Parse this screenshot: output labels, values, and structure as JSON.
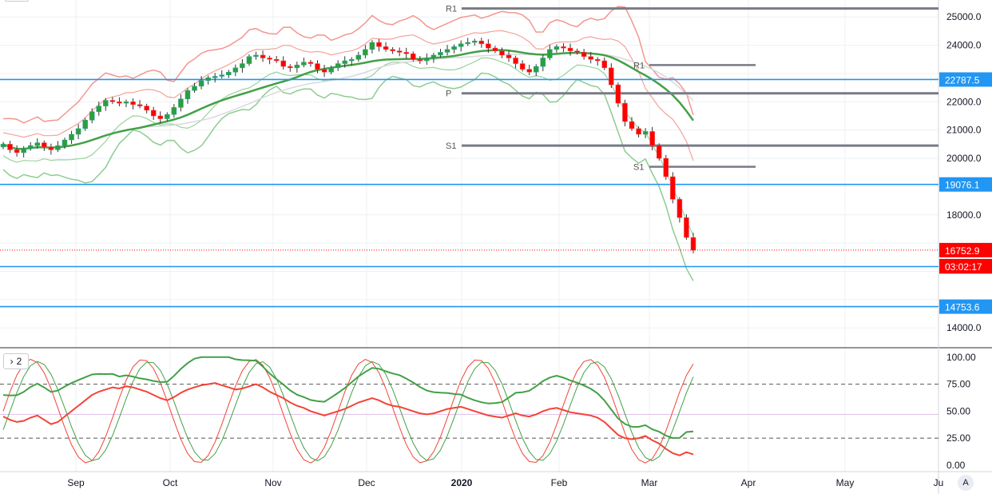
{
  "chart_data": [
    {
      "type": "candlestick",
      "title": "",
      "x_labels": [
        "Sep",
        "Oct",
        "Nov",
        "Dec",
        "2020",
        "Feb",
        "Mar",
        "Apr",
        "May",
        "Ju"
      ],
      "y_ticks": [
        "25000.0",
        "24000.0",
        "22000.0",
        "21000.0",
        "20000.0",
        "18000.0",
        "14000.0"
      ],
      "y_range": [
        13300,
        25600
      ],
      "horizontal_levels": [
        {
          "label": "22787.5",
          "value": 22787.5,
          "color": "#2196f3"
        },
        {
          "label": "19076.1",
          "value": 19076.1,
          "color": "#2196f3"
        },
        {
          "label": "16170.0",
          "value": 16170.0,
          "color": "#2196f3"
        },
        {
          "label": "14753.6",
          "value": 14753.6,
          "color": "#2196f3"
        }
      ],
      "last_price": {
        "label": "16752.9",
        "value": 16752.9,
        "color": "#ff0000"
      },
      "countdown": "03:02:17",
      "pivots": [
        {
          "label": "R1",
          "value": 25300
        },
        {
          "label": "P",
          "value": 22300
        },
        {
          "label": "S1",
          "value": 20450
        },
        {
          "label": "R1",
          "value": 23300
        },
        {
          "label": "S1",
          "value": 19700
        }
      ],
      "close": [
        20500,
        20300,
        20200,
        20350,
        20450,
        20550,
        20400,
        20300,
        20450,
        20650,
        20850,
        21050,
        21350,
        21650,
        21850,
        22050,
        22000,
        21950,
        22000,
        21900,
        21850,
        21700,
        21500,
        21400,
        21550,
        21800,
        22100,
        22400,
        22550,
        22750,
        22850,
        22900,
        22950,
        23050,
        23200,
        23350,
        23600,
        23650,
        23550,
        23500,
        23450,
        23250,
        23200,
        23300,
        23400,
        23350,
        23150,
        23050,
        23200,
        23350,
        23450,
        23500,
        23650,
        23850,
        24100,
        23950,
        23850,
        23800,
        23750,
        23700,
        23500,
        23450,
        23550,
        23650,
        23750,
        23850,
        23950,
        24050,
        24100,
        24150,
        24050,
        23900,
        23800,
        23650,
        23550,
        23350,
        23150,
        23050,
        23250,
        23550,
        23850,
        23950,
        23900,
        23800,
        23750,
        23600,
        23500,
        23450,
        23200,
        22600,
        21950,
        21300,
        21050,
        20850,
        20950,
        20450,
        20000,
        19350,
        18550,
        17900,
        17200,
        16750
      ],
      "rsi": [
        45,
        42,
        40,
        41,
        44,
        46,
        42,
        38,
        40,
        45,
        50,
        55,
        60,
        65,
        68,
        70,
        72,
        71,
        73,
        72,
        70,
        68,
        65,
        62,
        60,
        63,
        67,
        70,
        72,
        74,
        75,
        76,
        74,
        72,
        70,
        71,
        73,
        75,
        72,
        68,
        65,
        62,
        58,
        55,
        53,
        50,
        48,
        46,
        48,
        50,
        52,
        55,
        58,
        60,
        62,
        60,
        57,
        55,
        54,
        52,
        50,
        48,
        47,
        48,
        50,
        52,
        53,
        54,
        52,
        50,
        48,
        46,
        45,
        44,
        46,
        48,
        46,
        45,
        47,
        50,
        52,
        53,
        51,
        49,
        48,
        47,
        46,
        44,
        40,
        34,
        28,
        25,
        24,
        25,
        27,
        23,
        20,
        15,
        11,
        9,
        12,
        10
      ]
    },
    {
      "type": "line",
      "title": "",
      "pane": "oscillator",
      "y_ticks": [
        "100.00",
        "75.00",
        "50.00",
        "25.00",
        "0.00"
      ],
      "y_range": [
        -6,
        108
      ],
      "levels": [
        75,
        25
      ],
      "series_colors": {
        "fast": "#f44336",
        "slow": "#43a047"
      }
    }
  ],
  "controls": {
    "pane_toggle_icon": "chevron-right-icon",
    "pane_toggle_label": "2",
    "auto_scale_label": "A"
  },
  "pivot_labels": {
    "r1": "R1",
    "p": "P",
    "s1": "S1",
    "r1b": "R1",
    "s1b": "S1"
  }
}
